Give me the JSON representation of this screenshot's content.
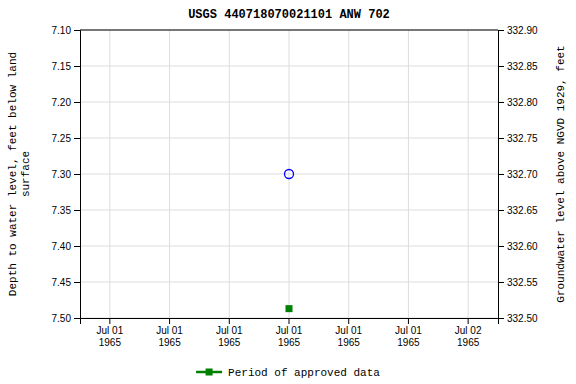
{
  "chart_data": {
    "type": "scatter",
    "title": "USGS 440718070021101 ANW  702",
    "y_label": "Depth to water level, feet below land\nsurface",
    "y2_label": "Groundwater level above NGVD 1929, feet",
    "categories": [
      "Jul 01\n1965",
      "Jul 01\n1965",
      "Jul 01\n1965",
      "Jul 01\n1965",
      "Jul 01\n1965",
      "Jul 01\n1965",
      "Jul 02\n1965"
    ],
    "series": [
      {
        "color": "blue",
        "marker": "circle-open",
        "values": [
          null,
          null,
          null,
          7.3,
          null,
          null,
          null
        ]
      },
      {
        "name": "Period of approved data",
        "color": "#008000",
        "marker": "square",
        "values": [
          null,
          null,
          null,
          7.487,
          null,
          null,
          null
        ]
      }
    ],
    "ylim": [
      7.5,
      7.1
    ],
    "yticks": [
      {
        "value": 7.1,
        "label": "7.10"
      },
      7.15,
      {
        "value": 7.2,
        "label": "7.20"
      },
      7.25,
      {
        "value": 7.3,
        "label": "7.30"
      },
      7.35,
      {
        "value": 7.4,
        "label": "7.40"
      },
      7.45,
      {
        "value": 7.5,
        "label": "7.50"
      }
    ],
    "y2lim": [
      332.5,
      332.9
    ],
    "y2ticks": [
      {
        "value": 332.5,
        "label": "332.50"
      },
      332.55,
      {
        "value": 332.6,
        "label": "332.60"
      },
      332.65,
      {
        "value": 332.7,
        "label": "332.70"
      },
      332.75,
      {
        "value": 332.8,
        "label": "332.80"
      },
      332.85,
      {
        "value": 332.9,
        "label": "332.90"
      }
    ],
    "grid": true,
    "legend": "bottom"
  }
}
